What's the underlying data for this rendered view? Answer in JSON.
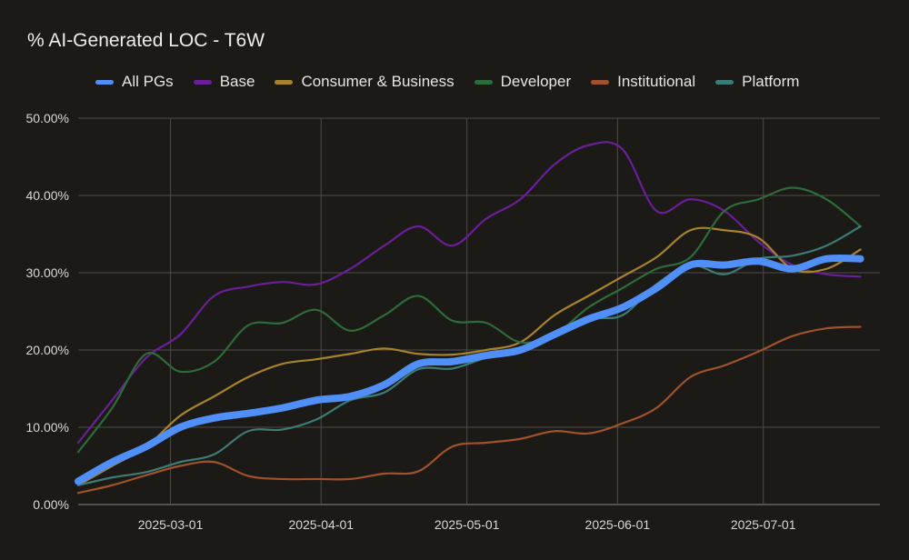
{
  "chart_data": {
    "type": "line",
    "title": "% AI-Generated LOC - T6W",
    "xlabel": "",
    "ylabel": "",
    "x_ticks": [
      "2025-03-01",
      "2025-04-01",
      "2025-05-01",
      "2025-06-01",
      "2025-07-01"
    ],
    "y_ticks": [
      "0.00%",
      "10.00%",
      "20.00%",
      "30.00%",
      "40.00%",
      "50.00%"
    ],
    "ylim": [
      0,
      50
    ],
    "grid": true,
    "legend_position": "top",
    "x": [
      "2025-02-10",
      "2025-02-17",
      "2025-02-24",
      "2025-03-03",
      "2025-03-10",
      "2025-03-17",
      "2025-03-24",
      "2025-03-31",
      "2025-04-07",
      "2025-04-14",
      "2025-04-21",
      "2025-04-28",
      "2025-05-05",
      "2025-05-12",
      "2025-05-19",
      "2025-05-26",
      "2025-06-02",
      "2025-06-09",
      "2025-06-16",
      "2025-06-23",
      "2025-06-30",
      "2025-07-07",
      "2025-07-14",
      "2025-07-21"
    ],
    "series": [
      {
        "name": "All PGs",
        "color": "#4f8ff7",
        "values": [
          3,
          5.5,
          7.5,
          10,
          11.2,
          11.8,
          12.5,
          13.5,
          14,
          15.5,
          18.2,
          18.5,
          19.3,
          20,
          22,
          24,
          25.5,
          28,
          31,
          31,
          31.5,
          30.5,
          31.8,
          31.8
        ]
      },
      {
        "name": "Base",
        "color": "#6a1f9a",
        "values": [
          8,
          13.5,
          19,
          22,
          27,
          28.2,
          28.8,
          28.5,
          30.5,
          33.5,
          36,
          33.5,
          37,
          39.5,
          44,
          46.5,
          46,
          38,
          39.5,
          38,
          34,
          31,
          29.8,
          29.5
        ]
      },
      {
        "name": "Consumer & Business",
        "color": "#a8832a",
        "values": [
          2.5,
          5,
          7.5,
          11.5,
          14,
          16.5,
          18.2,
          18.8,
          19.5,
          20.2,
          19.5,
          19.4,
          20,
          21,
          24.5,
          27,
          29.5,
          32,
          35.5,
          35.5,
          34.5,
          30.5,
          30.5,
          33
        ]
      },
      {
        "name": "Developer",
        "color": "#2e6b3a",
        "values": [
          6.8,
          12.5,
          19.5,
          17.2,
          18.5,
          23.2,
          23.5,
          25.2,
          22.5,
          24.5,
          27,
          23.8,
          23.5,
          21,
          22,
          25.5,
          28,
          30.5,
          32,
          38,
          39.5,
          41,
          39.5,
          36
        ]
      },
      {
        "name": "Institutional",
        "color": "#a0522d",
        "values": [
          1.5,
          2.5,
          3.8,
          5,
          5.5,
          3.7,
          3.3,
          3.3,
          3.3,
          4,
          4.3,
          7.5,
          8,
          8.5,
          9.5,
          9.2,
          10.5,
          12.5,
          16.5,
          18,
          19.8,
          21.8,
          22.8,
          23
        ]
      },
      {
        "name": "Platform",
        "color": "#3d7c76",
        "values": [
          2.5,
          3.5,
          4.2,
          5.5,
          6.5,
          9.5,
          9.7,
          11,
          13.5,
          14.5,
          17.5,
          17.6,
          19,
          20,
          22,
          24,
          24.5,
          28.5,
          31,
          29.8,
          31.8,
          32.2,
          33.5,
          36
        ]
      }
    ]
  }
}
